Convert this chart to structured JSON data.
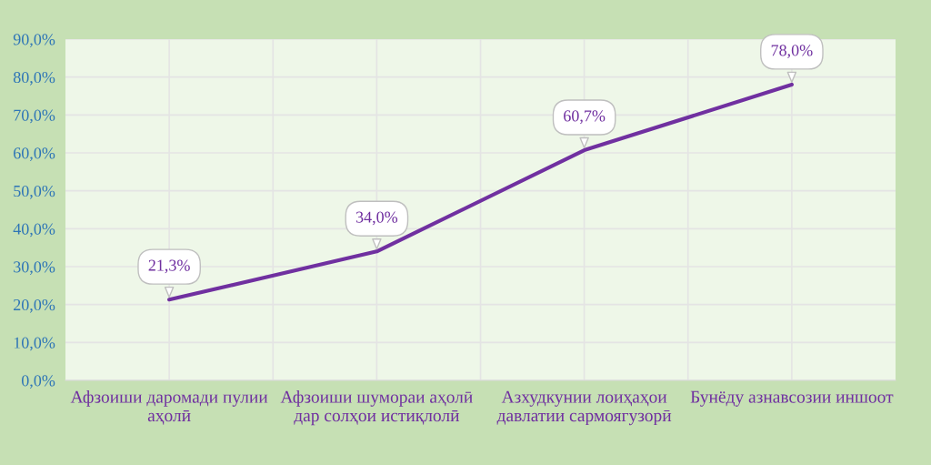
{
  "chart_data": {
    "type": "line",
    "categories": [
      "Афзоиши даромади пулии\nаҳолӣ",
      "Афзоиши шумораи аҳолӣ\nдар солҳои истиқлолӣ",
      "Азхудкунии лоиҳаҳои\nдавлатии сармоягузорӣ",
      "Бунёду азнавсозии иншоот"
    ],
    "series": [
      {
        "color": "#7030a0",
        "values": [
          21.3,
          34.0,
          60.7,
          78.0
        ],
        "value_labels": [
          "21,3%",
          "34,0%",
          "60,7%",
          "78,0%"
        ]
      }
    ],
    "ylim": [
      0,
      90
    ],
    "yticks": [
      {
        "value": 0,
        "label": "0,0%"
      },
      {
        "value": 10,
        "label": "10,0%"
      },
      {
        "value": 20,
        "label": "20,0%"
      },
      {
        "value": 30,
        "label": "30,0%"
      },
      {
        "value": 40,
        "label": "40,0%"
      },
      {
        "value": 50,
        "label": "50,0%"
      },
      {
        "value": 60,
        "label": "60,0%"
      },
      {
        "value": 70,
        "label": "70,0%"
      },
      {
        "value": 80,
        "label": "80,0%"
      },
      {
        "value": 90,
        "label": "90,0%"
      }
    ],
    "grid": true,
    "marker": "none",
    "line_style": "solid",
    "legend": false
  }
}
